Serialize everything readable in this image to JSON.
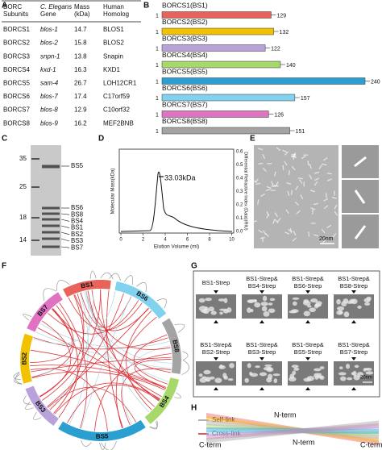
{
  "panels": [
    "A",
    "B",
    "C",
    "D",
    "E",
    "F",
    "G",
    "H"
  ],
  "a": {
    "header": [
      [
        "BORC",
        "Subunits"
      ],
      [
        "C. Elegans",
        "Gene"
      ],
      [
        "Mass",
        "(kDa)"
      ],
      [
        "Human",
        "Homolog"
      ]
    ],
    "rows": [
      [
        "BORCS1",
        "blos-1",
        "14.7",
        "BLOS1"
      ],
      [
        "BORCS2",
        "blos-2",
        "15.8",
        "BLOS2"
      ],
      [
        "BORCS3",
        "snpn-1",
        "13.8",
        "Snapin"
      ],
      [
        "BORCS4",
        "kxd-1",
        "16.3",
        "KXD1"
      ],
      [
        "BORCS5",
        "sam-4",
        "26.7",
        "LOH12CR1"
      ],
      [
        "BORCS6",
        "blos-7",
        "17.4",
        "C17orf59"
      ],
      [
        "BORCS7",
        "blos-8",
        "12.9",
        "C10orf32"
      ],
      [
        "BORCS8",
        "blos-9",
        "16.2",
        "MEF2BNB"
      ]
    ]
  },
  "b": {
    "start": 1,
    "proteins": [
      {
        "name": "BORCS1(BS1)",
        "length": 129,
        "color": "#e8635a"
      },
      {
        "name": "BORCS2(BS2)",
        "length": 132,
        "color": "#f2c200"
      },
      {
        "name": "BORCS3(BS3)",
        "length": 122,
        "color": "#b9a2da"
      },
      {
        "name": "BORCS4(BS4)",
        "length": 140,
        "color": "#a6d86a"
      },
      {
        "name": "BORCS5(BS5)",
        "length": 240,
        "color": "#2a9fd0"
      },
      {
        "name": "BORCS6(BS6)",
        "length": 157,
        "color": "#80d2ef"
      },
      {
        "name": "BORCS7(BS7)",
        "length": 126,
        "color": "#e072c2"
      },
      {
        "name": "BORCS8(BS8)",
        "length": 151,
        "color": "#a4a4a4"
      }
    ]
  },
  "c": {
    "markers": [
      35,
      25,
      18,
      14
    ],
    "bands": [
      "BS5",
      "BS6",
      "BS8",
      "BS4",
      "BS1",
      "BS2",
      "BS3",
      "BS7"
    ]
  },
  "d": {
    "annotation": "33.03kDa",
    "x_label": "Elution Volume (ml)",
    "y_label": "Molecular Mass(kDa)",
    "y2_label": "Differential Refractive Index (Data)(RIU)",
    "xticks": [
      0,
      2,
      4,
      6,
      8,
      10
    ],
    "y2ticks": [
      "0.0",
      "0.1",
      "0.2",
      "0.3",
      "0.4",
      "0.5",
      "0.6"
    ]
  },
  "e": {
    "scale": "20nm"
  },
  "f": {
    "segments": [
      "BS1",
      "BS6",
      "BS8",
      "BS4",
      "BS5",
      "BS3",
      "BS2",
      "BS7"
    ],
    "legend": [
      "Self-link",
      "Cross-link"
    ]
  },
  "g": {
    "cells": [
      [
        "BS1-Strep"
      ],
      [
        "BS1-Strep&",
        "BS4-Strep"
      ],
      [
        "BS1-Strep&",
        "BS6-Strep"
      ],
      [
        "BS1-Strep&",
        "BS8-Strep"
      ],
      [
        "BS1-Strep&",
        "BS2-Strep"
      ],
      [
        "BS1-Strep&",
        "BS3-Strep"
      ],
      [
        "BS1-Strep&",
        "BS5-Strep"
      ],
      [
        "BS1-Strep&",
        "BS7-Strep"
      ]
    ],
    "scale": "20nm"
  },
  "h": {
    "labels": [
      "N-term",
      "C-term",
      "N-term",
      "C-term"
    ]
  }
}
